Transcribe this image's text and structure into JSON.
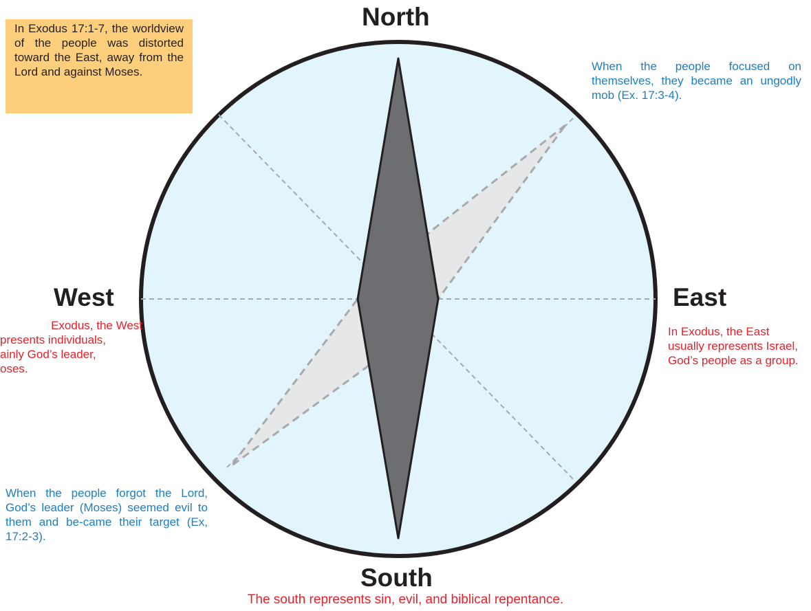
{
  "directions": {
    "north": "North",
    "south": "South",
    "east": "East",
    "west": "West"
  },
  "notes": {
    "top_left_box": "In Exodus 17:1-7, the worldview of the people was distorted toward the East, away from the Lord and against Moses.",
    "top_right": "When the people focused on themselves, they became an ungodly mob (Ex. 17:3-4).",
    "east": "In Exodus, the East usually represents Israel, God’s people as a group.",
    "west_lines": [
      "Exodus, the West",
      "presents individuals,",
      "ainly God’s leader,",
      "oses."
    ],
    "bottom_left": "When the people forgot the Lord, God’s leader (Moses) seemed evil to them and be-came their target (Ex, 17:2-3).",
    "south": "The south represents sin, evil, and biblical repentance."
  },
  "colors": {
    "circle_fill": "#e2f4fc",
    "circle_stroke": "#231f20",
    "needle": "#6d6e71",
    "distorted_needle": "#e6e7e8",
    "dashed": "#a7a9ac",
    "box": "#fdcf7d",
    "red_text": "#e8202a",
    "blue_text": "#1d7ec2"
  }
}
